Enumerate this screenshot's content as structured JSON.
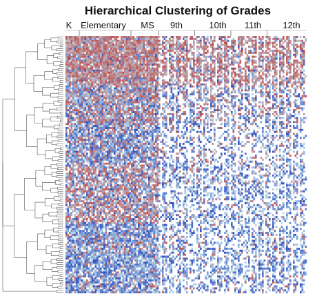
{
  "chart_data": {
    "type": "heatmap",
    "title": "Hierarchical Clustering of Grades",
    "column_groups": [
      "K",
      "Elementary",
      "MS",
      "9th",
      "10th",
      "11th",
      "12th"
    ],
    "dendrogram": "left",
    "color_scale": {
      "high": "#c0504d",
      "mid": "#b8d8ea",
      "low": "#2e4fbf",
      "missing": "#ffffff"
    },
    "bands": [
      {
        "rows": [
          0,
          25
        ],
        "pattern": "high grades throughout, red dominant in Elementary, MS and high school columns"
      },
      {
        "rows": [
          25,
          45
        ],
        "pattern": "mixed red and light-blue in early grades, scattered blue in high school"
      },
      {
        "rows": [
          45,
          65
        ],
        "pattern": "light-blue and blue in Elementary, sparse in high school"
      },
      {
        "rows": [
          65,
          95
        ],
        "pattern": "red in early grades, blue dominant in high school"
      },
      {
        "rows": [
          95,
          130
        ],
        "pattern": "blue dominant with sparse red, many missing cells in high school"
      }
    ]
  }
}
